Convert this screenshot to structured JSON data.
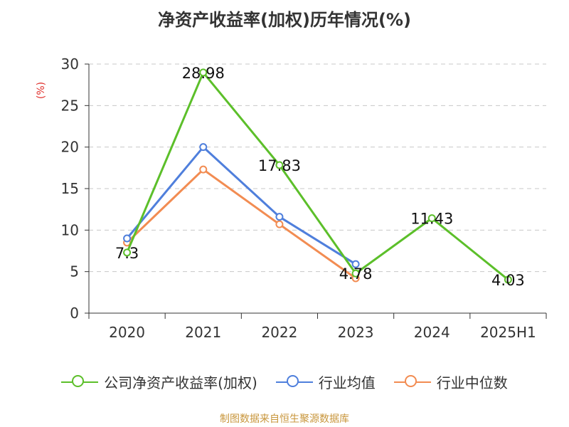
{
  "chart_data": {
    "type": "line",
    "title": "净资产收益率(加权)历年情况(%)",
    "ylabel": "(%)",
    "categories": [
      "2020",
      "2021",
      "2022",
      "2023",
      "2024",
      "2025H1"
    ],
    "ylim": [
      0,
      30
    ],
    "yticks": [
      "0",
      "5",
      "10",
      "15",
      "20",
      "25",
      "30"
    ],
    "series": [
      {
        "name": "公司净资产收益率(加权)",
        "color": "#5cbf2a",
        "values": [
          7.3,
          28.98,
          17.83,
          4.78,
          11.43,
          4.03
        ],
        "labels": [
          "7.3",
          "28.98",
          "17.83",
          "4.78",
          "11.43",
          "4.03"
        ]
      },
      {
        "name": "行业均值",
        "color": "#4f7fdc",
        "values": [
          9.0,
          20.0,
          11.6,
          5.9,
          null,
          null
        ]
      },
      {
        "name": "行业中位数",
        "color": "#f28c52",
        "values": [
          8.5,
          17.3,
          10.7,
          4.2,
          null,
          null
        ]
      }
    ]
  },
  "source": "制图数据来自恒生聚源数据库"
}
